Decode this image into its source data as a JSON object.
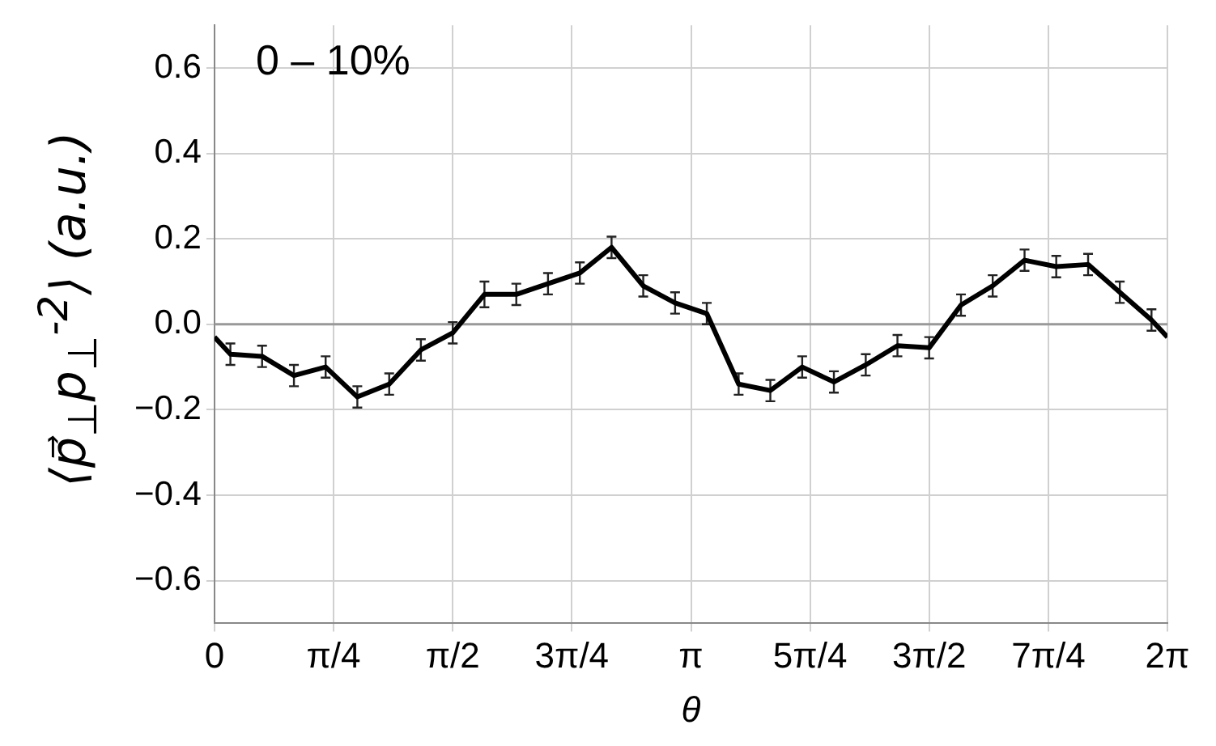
{
  "chart_data": {
    "type": "line",
    "xlabel": "θ",
    "ylabel": "⟨p⃗$_{⊥}$p$_{⊥}$$^{-2}$⟩ (a.u.)",
    "x": [
      0,
      0.105,
      0.314,
      0.524,
      0.733,
      0.942,
      1.152,
      1.361,
      1.571,
      1.78,
      1.99,
      2.199,
      2.409,
      2.618,
      2.827,
      3.037,
      3.246,
      3.456,
      3.665,
      3.875,
      4.084,
      4.294,
      4.503,
      4.712,
      4.922,
      5.131,
      5.341,
      5.55,
      5.76,
      5.969,
      6.178,
      6.283
    ],
    "series": [
      {
        "color": "#000000",
        "values": [
          -0.03,
          -0.07,
          -0.075,
          -0.12,
          -0.1,
          -0.17,
          -0.14,
          -0.06,
          -0.02,
          0.07,
          0.07,
          0.095,
          0.12,
          0.18,
          0.09,
          0.05,
          0.025,
          -0.14,
          -0.155,
          -0.1,
          -0.135,
          -0.095,
          -0.05,
          -0.055,
          0.045,
          0.09,
          0.15,
          0.135,
          0.14,
          0.075,
          0.01,
          -0.03
        ],
        "errors": [
          null,
          0.025,
          0.025,
          0.025,
          0.025,
          0.025,
          0.025,
          0.025,
          0.025,
          0.03,
          0.025,
          0.025,
          0.025,
          0.025,
          0.025,
          0.025,
          0.025,
          0.025,
          0.025,
          0.025,
          0.025,
          0.025,
          0.025,
          0.025,
          0.025,
          0.025,
          0.025,
          0.025,
          0.025,
          0.025,
          0.025,
          null
        ]
      }
    ],
    "xlim": [
      0,
      6.283
    ],
    "xticks": [
      {
        "value": 0,
        "label": "0"
      },
      {
        "value": 0.785,
        "label": "π/4"
      },
      {
        "value": 1.571,
        "label": "π/2"
      },
      {
        "value": 2.356,
        "label": "3π/4"
      },
      {
        "value": 3.142,
        "label": "π"
      },
      {
        "value": 3.927,
        "label": "5π/4"
      },
      {
        "value": 4.712,
        "label": "3π/2"
      },
      {
        "value": 5.498,
        "label": "7π/4"
      },
      {
        "value": 6.283,
        "label": "2π"
      }
    ],
    "ylim": [
      -0.7,
      0.7
    ],
    "yticks": [
      {
        "value": -0.6,
        "label": "−0.6"
      },
      {
        "value": -0.4,
        "label": "−0.4"
      },
      {
        "value": -0.2,
        "label": "−0.2"
      },
      {
        "value": 0,
        "label": "0.0"
      },
      0.2,
      0.4,
      0.6
    ],
    "ref_lines": [
      {
        "axis": "y",
        "value": 0,
        "color": "#999999"
      }
    ],
    "annotations": [
      "0 – 10%"
    ],
    "grid": true,
    "legend": false,
    "marker": "none",
    "line_style": "solid"
  }
}
